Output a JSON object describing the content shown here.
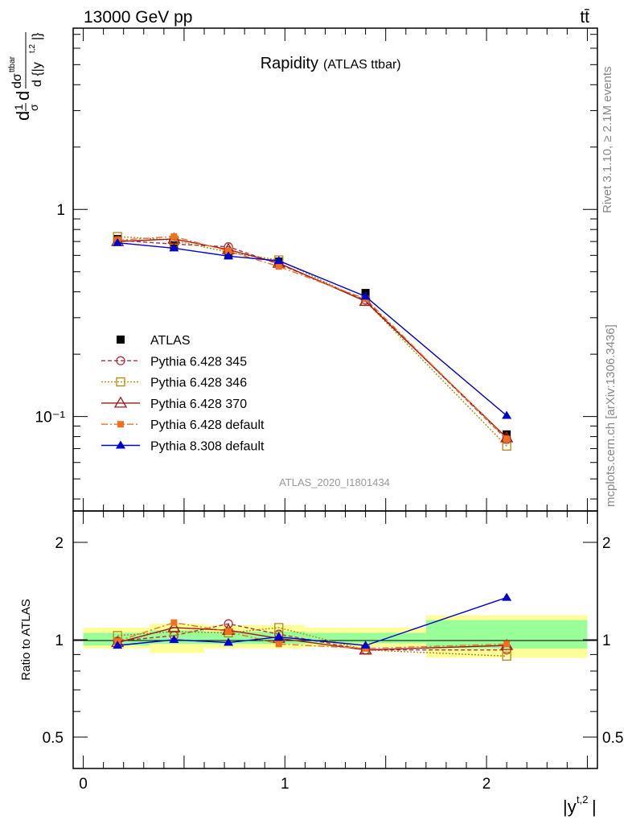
{
  "header": {
    "left": "13000 GeV pp",
    "right": "tt̄"
  },
  "side_text": {
    "rivet": "Rivet 3.1.10, ≥ 2.1M events",
    "mcplots": "mcplots.cern.ch [arXiv:1306.3436]"
  },
  "chart_data": [
    {
      "type": "line",
      "title": "Rapidity",
      "subtitle": "(ATLAS ttbar)",
      "watermark": "ATLAS_2020_I1801434",
      "ylabel": "d(1/σ)dσ/d{|y^{t,2}|}",
      "yscale": "log",
      "ylim": [
        0.035,
        7.5
      ],
      "xlim": [
        -0.05,
        2.55
      ],
      "yticks": [
        {
          "v": 1,
          "label": "1"
        },
        {
          "v": 0.1,
          "label": "10⁻¹"
        }
      ],
      "legend_position": "lower-left",
      "x": [
        0.17,
        0.45,
        0.72,
        0.97,
        1.4,
        2.1
      ],
      "series": [
        {
          "name": "ATLAS",
          "color": "#000000",
          "marker": "filled-square",
          "line": "none",
          "values": [
            0.72,
            0.67,
            0.6,
            0.56,
            0.395,
            0.082
          ]
        },
        {
          "name": "Pythia 6.428 345",
          "color": "#b03040",
          "marker": "open-circle",
          "line": "dashed",
          "values": [
            0.71,
            0.68,
            0.66,
            0.545,
            0.365,
            0.0775
          ]
        },
        {
          "name": "Pythia 6.428 346",
          "color": "#b8860b",
          "marker": "open-square",
          "line": "dotted",
          "values": [
            0.74,
            0.71,
            0.62,
            0.57,
            0.36,
            0.072
          ]
        },
        {
          "name": "Pythia 6.428 370",
          "color": "#a01818",
          "marker": "open-triangle",
          "line": "solid",
          "values": [
            0.7,
            0.72,
            0.64,
            0.55,
            0.36,
            0.079
          ]
        },
        {
          "name": "Pythia 6.428 default",
          "color": "#f07020",
          "marker": "filled-square-small",
          "line": "dashdot",
          "values": [
            0.71,
            0.74,
            0.63,
            0.53,
            0.37,
            0.078
          ]
        },
        {
          "name": "Pythia 8.308 default",
          "color": "#0000cc",
          "marker": "filled-triangle",
          "line": "solid",
          "values": [
            0.69,
            0.65,
            0.595,
            0.565,
            0.38,
            0.101
          ]
        }
      ]
    },
    {
      "type": "line",
      "ylabel": "Ratio to ATLAS",
      "xlabel": "|y^{t,2}|",
      "yscale": "log",
      "ylim": [
        0.4,
        2.5
      ],
      "xlim": [
        -0.05,
        2.55
      ],
      "xticks": [
        {
          "v": 0,
          "label": "0"
        },
        {
          "v": 1,
          "label": "1"
        },
        {
          "v": 2,
          "label": "2"
        }
      ],
      "yticks": [
        {
          "v": 2,
          "label": "2"
        },
        {
          "v": 1,
          "label": "1"
        },
        {
          "v": 0.5,
          "label": "0.5"
        }
      ],
      "bands": [
        {
          "xlo": 0.0,
          "xhi": 0.33,
          "inner": [
            0.96,
            1.05
          ],
          "outer": [
            0.94,
            1.09
          ]
        },
        {
          "xlo": 0.33,
          "xhi": 0.6,
          "inner": [
            0.97,
            1.07
          ],
          "outer": [
            0.91,
            1.12
          ]
        },
        {
          "xlo": 0.6,
          "xhi": 1.1,
          "inner": [
            0.97,
            1.06
          ],
          "outer": [
            0.94,
            1.11
          ]
        },
        {
          "xlo": 1.1,
          "xhi": 1.7,
          "inner": [
            0.975,
            1.05
          ],
          "outer": [
            0.95,
            1.09
          ]
        },
        {
          "xlo": 1.7,
          "xhi": 2.5,
          "inner": [
            0.94,
            1.15
          ],
          "outer": [
            0.88,
            1.19
          ]
        }
      ],
      "x": [
        0.17,
        0.45,
        0.72,
        0.97,
        1.4,
        2.1
      ],
      "series": [
        {
          "name": "Pythia 6.428 345",
          "values": [
            0.99,
            1.03,
            1.12,
            1.04,
            0.93,
            0.93
          ]
        },
        {
          "name": "Pythia 6.428 346",
          "values": [
            1.03,
            1.06,
            1.05,
            1.09,
            0.93,
            0.89
          ]
        },
        {
          "name": "Pythia 6.428 370",
          "values": [
            0.98,
            1.09,
            1.07,
            1.01,
            0.93,
            0.96
          ]
        },
        {
          "name": "Pythia 6.428 default",
          "values": [
            0.99,
            1.13,
            1.06,
            0.97,
            0.94,
            0.97
          ]
        },
        {
          "name": "Pythia 8.308 default",
          "values": [
            0.96,
            1.0,
            0.98,
            1.02,
            0.96,
            1.35
          ]
        }
      ]
    }
  ]
}
